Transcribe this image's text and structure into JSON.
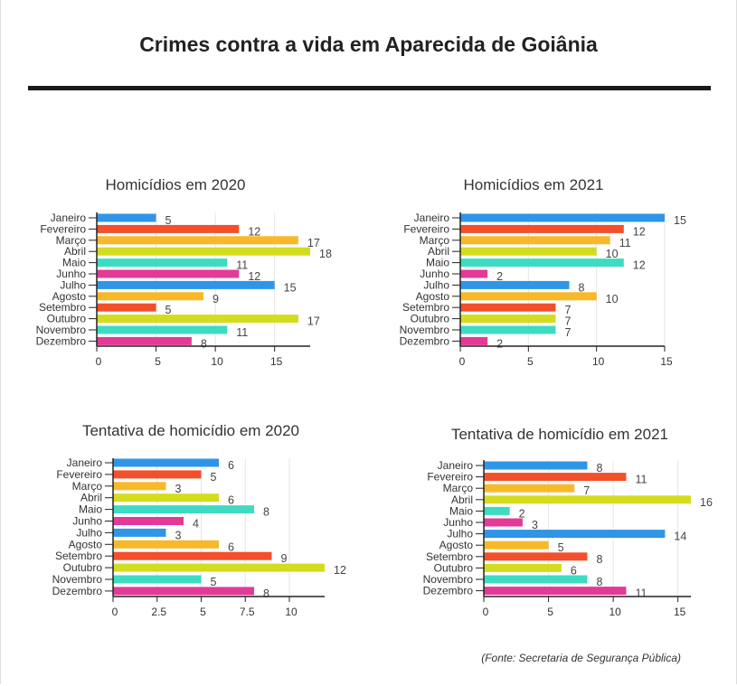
{
  "title": "Crimes contra a vida em Aparecida de Goiânia",
  "source": "(Fonte: Secretaria de Segurança Pública)",
  "colors": [
    "#2f95e8",
    "#f44f2b",
    "#f7b92a",
    "#d4dc1e",
    "#3ddcc2",
    "#e33a97",
    "#2f95e8",
    "#f7b92a",
    "#f44f2b",
    "#d4dc1e",
    "#3ddcc2",
    "#e33a97"
  ],
  "chart_data": [
    {
      "type": "bar",
      "orientation": "horizontal",
      "title": "Homicídios em 2020",
      "categories": [
        "Janeiro",
        "Fevereiro",
        "Março",
        "Abril",
        "Maio",
        "Junho",
        "Julho",
        "Agosto",
        "Setembro",
        "Outubro",
        "Novembro",
        "Dezembro"
      ],
      "values": [
        5,
        12,
        17,
        18,
        11,
        12,
        15,
        9,
        5,
        17,
        11,
        8
      ],
      "xlim": [
        0,
        18
      ],
      "xticks": [
        "0",
        "5",
        "10",
        "15"
      ],
      "grid": true
    },
    {
      "type": "bar",
      "orientation": "horizontal",
      "title": "Homicídios em 2021",
      "categories": [
        "Janeiro",
        "Fevereiro",
        "Março",
        "Abril",
        "Maio",
        "Junho",
        "Julho",
        "Agosto",
        "Setembro",
        "Outubro",
        "Novembro",
        "Dezembro"
      ],
      "values": [
        15,
        12,
        11,
        10,
        12,
        2,
        8,
        10,
        7,
        7,
        7,
        2
      ],
      "xlim": [
        0,
        15
      ],
      "xticks": [
        "0",
        "5",
        "10",
        "15"
      ],
      "grid": true
    },
    {
      "type": "bar",
      "orientation": "horizontal",
      "title": "Tentativa de homicídio em 2020",
      "categories": [
        "Janeiro",
        "Fevereiro",
        "Março",
        "Abril",
        "Maio",
        "Junho",
        "Julho",
        "Agosto",
        "Setembro",
        "Outubro",
        "Novembro",
        "Dezembro"
      ],
      "values": [
        6,
        5,
        3,
        6,
        8,
        4,
        3,
        6,
        9,
        12,
        5,
        8
      ],
      "xlim": [
        0,
        12
      ],
      "xticks": [
        "0",
        "2.5",
        "5",
        "7.5",
        "10"
      ],
      "grid": true
    },
    {
      "type": "bar",
      "orientation": "horizontal",
      "title": "Tentativa de homicídio em 2021",
      "categories": [
        "Janeiro",
        "Fevereiro",
        "Março",
        "Abril",
        "Maio",
        "Junho",
        "Julho",
        "Agosto",
        "Setembro",
        "Outubro",
        "Novembro",
        "Dezembro"
      ],
      "values": [
        8,
        11,
        7,
        16,
        2,
        3,
        14,
        5,
        8,
        6,
        8,
        11
      ],
      "xlim": [
        0,
        16
      ],
      "xticks": [
        "0",
        "5",
        "10",
        "15"
      ],
      "grid": true
    }
  ]
}
